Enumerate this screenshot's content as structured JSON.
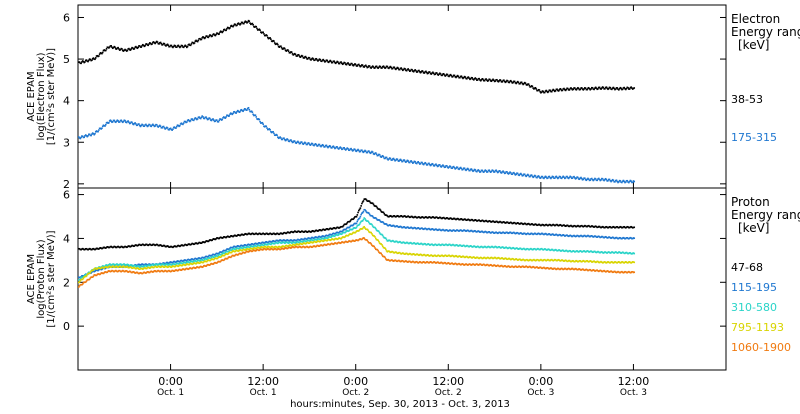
{
  "figure": {
    "xlabel": "hours:minutes, Sep. 30, 2013 - Oct. 3, 2013",
    "x_ticks": [
      {
        "time": "0:00",
        "date": "Oct. 1",
        "hour": 24
      },
      {
        "time": "12:00",
        "date": "Oct. 1",
        "hour": 36
      },
      {
        "time": "0:00",
        "date": "Oct. 2",
        "hour": 48
      },
      {
        "time": "12:00",
        "date": "Oct. 2",
        "hour": 60
      },
      {
        "time": "0:00",
        "date": "Oct. 3",
        "hour": 72
      },
      {
        "time": "12:00",
        "date": "Oct. 3",
        "hour": 84
      }
    ],
    "x_range_hours": [
      12,
      96
    ]
  },
  "chart_data": [
    {
      "type": "scatter",
      "panel": "electron",
      "ylabel": [
        "ACE EPAM",
        "log(Electron Flux)",
        "[1/(cm²s ster MeV)]"
      ],
      "ylim": [
        1.9,
        6.3
      ],
      "yticks": [
        2,
        3,
        4,
        5,
        6
      ],
      "legend_title": [
        "Electron",
        "Energy range",
        "[keV]"
      ],
      "series": [
        {
          "name": "38-53",
          "color": "#000000",
          "x": [
            12,
            14,
            16,
            18,
            20,
            22,
            24,
            26,
            28,
            30,
            32,
            34,
            36,
            38,
            40,
            42,
            44,
            46,
            48,
            50,
            52,
            54,
            56,
            58,
            60,
            62,
            64,
            66,
            68,
            70,
            72,
            74,
            76,
            78,
            80,
            82,
            84
          ],
          "y": [
            4.9,
            5.0,
            5.3,
            5.2,
            5.3,
            5.4,
            5.3,
            5.3,
            5.5,
            5.6,
            5.8,
            5.9,
            5.6,
            5.3,
            5.1,
            5.0,
            4.95,
            4.9,
            4.85,
            4.8,
            4.8,
            4.75,
            4.7,
            4.65,
            4.6,
            4.55,
            4.5,
            4.48,
            4.45,
            4.4,
            4.2,
            4.25,
            4.28,
            4.28,
            4.3,
            4.28,
            4.3
          ]
        },
        {
          "name": "175-315",
          "color": "#1f77d0",
          "x": [
            12,
            14,
            16,
            18,
            20,
            22,
            24,
            26,
            28,
            30,
            32,
            34,
            36,
            38,
            40,
            42,
            44,
            46,
            48,
            50,
            52,
            54,
            56,
            58,
            60,
            62,
            64,
            66,
            68,
            70,
            72,
            74,
            76,
            78,
            80,
            82,
            84
          ],
          "y": [
            3.1,
            3.2,
            3.5,
            3.5,
            3.4,
            3.4,
            3.3,
            3.5,
            3.6,
            3.5,
            3.7,
            3.8,
            3.4,
            3.1,
            3.0,
            2.95,
            2.9,
            2.85,
            2.8,
            2.75,
            2.6,
            2.55,
            2.5,
            2.45,
            2.4,
            2.35,
            2.3,
            2.3,
            2.25,
            2.2,
            2.15,
            2.15,
            2.15,
            2.1,
            2.1,
            2.05,
            2.05
          ]
        }
      ]
    },
    {
      "type": "scatter",
      "panel": "proton",
      "ylabel": [
        "ACE EPAM",
        "log(Proton Flux)",
        "[1/(cm²s ster MeV)]"
      ],
      "ylim": [
        -2,
        6.3
      ],
      "yticks": [
        0,
        2,
        4,
        6
      ],
      "legend_title": [
        "Proton",
        "Energy range",
        "[keV]"
      ],
      "series": [
        {
          "name": "47-68",
          "color": "#000000",
          "x": [
            12,
            14,
            16,
            18,
            20,
            22,
            24,
            26,
            28,
            30,
            32,
            34,
            36,
            38,
            40,
            42,
            44,
            46,
            48,
            49,
            50,
            52,
            54,
            56,
            58,
            60,
            62,
            64,
            66,
            68,
            70,
            72,
            74,
            76,
            78,
            80,
            82,
            84
          ],
          "y": [
            3.5,
            3.5,
            3.6,
            3.6,
            3.7,
            3.7,
            3.6,
            3.7,
            3.8,
            4.0,
            4.1,
            4.2,
            4.2,
            4.2,
            4.3,
            4.3,
            4.4,
            4.5,
            5.0,
            5.8,
            5.6,
            5.0,
            5.0,
            4.95,
            4.95,
            4.9,
            4.85,
            4.8,
            4.75,
            4.7,
            4.65,
            4.6,
            4.6,
            4.55,
            4.55,
            4.5,
            4.5,
            4.5
          ]
        },
        {
          "name": "115-195",
          "color": "#1f77d0",
          "x": [
            12,
            14,
            16,
            18,
            20,
            22,
            24,
            26,
            28,
            30,
            32,
            34,
            36,
            38,
            40,
            42,
            44,
            46,
            48,
            49,
            50,
            52,
            54,
            56,
            58,
            60,
            62,
            64,
            66,
            68,
            70,
            72,
            74,
            76,
            78,
            80,
            82,
            84
          ],
          "y": [
            2.2,
            2.5,
            2.7,
            2.7,
            2.8,
            2.8,
            2.9,
            3.0,
            3.1,
            3.3,
            3.6,
            3.7,
            3.8,
            3.9,
            3.9,
            4.0,
            4.1,
            4.3,
            4.7,
            5.3,
            5.0,
            4.6,
            4.5,
            4.45,
            4.4,
            4.35,
            4.35,
            4.3,
            4.25,
            4.25,
            4.2,
            4.2,
            4.15,
            4.1,
            4.1,
            4.05,
            4.0,
            4.0
          ]
        },
        {
          "name": "310-580",
          "color": "#2ad4c8",
          "x": [
            12,
            14,
            16,
            18,
            20,
            22,
            24,
            26,
            28,
            30,
            32,
            34,
            36,
            38,
            40,
            42,
            44,
            46,
            48,
            49,
            50,
            52,
            54,
            56,
            58,
            60,
            62,
            64,
            66,
            68,
            70,
            72,
            74,
            76,
            78,
            80,
            82,
            84
          ],
          "y": [
            2.1,
            2.6,
            2.8,
            2.8,
            2.7,
            2.8,
            2.8,
            2.9,
            3.0,
            3.2,
            3.5,
            3.6,
            3.7,
            3.8,
            3.8,
            3.9,
            4.0,
            4.2,
            4.5,
            4.9,
            4.6,
            3.9,
            3.8,
            3.75,
            3.7,
            3.7,
            3.65,
            3.6,
            3.6,
            3.55,
            3.5,
            3.5,
            3.45,
            3.4,
            3.4,
            3.35,
            3.35,
            3.3
          ]
        },
        {
          "name": "795-1193",
          "color": "#d8d400",
          "x": [
            12,
            14,
            16,
            18,
            20,
            22,
            24,
            26,
            28,
            30,
            32,
            34,
            36,
            38,
            40,
            42,
            44,
            46,
            48,
            49,
            50,
            52,
            54,
            56,
            58,
            60,
            62,
            64,
            66,
            68,
            70,
            72,
            74,
            76,
            78,
            80,
            82,
            84
          ],
          "y": [
            2.0,
            2.6,
            2.7,
            2.7,
            2.6,
            2.7,
            2.7,
            2.8,
            2.9,
            3.1,
            3.4,
            3.5,
            3.6,
            3.6,
            3.7,
            3.8,
            3.9,
            4.0,
            4.3,
            4.5,
            4.2,
            3.4,
            3.3,
            3.25,
            3.2,
            3.2,
            3.15,
            3.1,
            3.1,
            3.05,
            3.0,
            3.0,
            3.0,
            2.95,
            2.95,
            2.9,
            2.9,
            2.9
          ]
        },
        {
          "name": "1060-1900",
          "color": "#f07a10",
          "x": [
            12,
            14,
            16,
            18,
            20,
            22,
            24,
            26,
            28,
            30,
            32,
            34,
            36,
            38,
            40,
            42,
            44,
            46,
            48,
            49,
            50,
            52,
            54,
            56,
            58,
            60,
            62,
            64,
            66,
            68,
            70,
            72,
            74,
            76,
            78,
            80,
            82,
            84
          ],
          "y": [
            1.8,
            2.3,
            2.5,
            2.5,
            2.4,
            2.5,
            2.5,
            2.6,
            2.7,
            2.9,
            3.2,
            3.4,
            3.5,
            3.5,
            3.6,
            3.6,
            3.7,
            3.8,
            3.9,
            4.0,
            3.7,
            3.0,
            2.95,
            2.9,
            2.9,
            2.85,
            2.8,
            2.8,
            2.75,
            2.7,
            2.7,
            2.65,
            2.6,
            2.6,
            2.55,
            2.5,
            2.45,
            2.45
          ]
        }
      ]
    }
  ]
}
